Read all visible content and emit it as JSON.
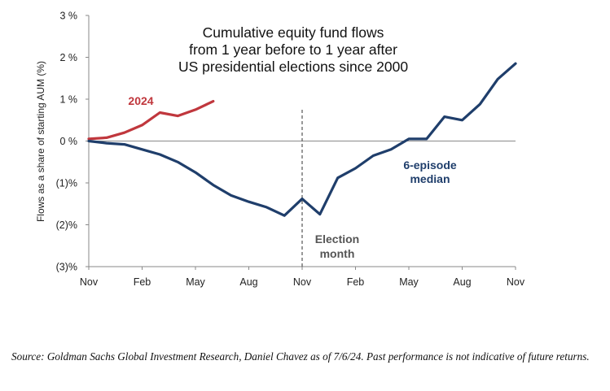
{
  "chart_data": {
    "type": "line",
    "title_lines": [
      "Cumulative equity fund flows",
      "from 1 year before to 1 year after",
      "US presidential elections since 2000"
    ],
    "ylabel": "Flows as a share of starting AUM (%)",
    "xlabel": "",
    "x_ticks": [
      "Nov",
      "Feb",
      "May",
      "Aug",
      "Nov",
      "Feb",
      "May",
      "Aug",
      "Nov"
    ],
    "x_range": [
      0,
      24
    ],
    "ylim": [
      -3,
      3
    ],
    "y_ticks": [
      {
        "value": 3,
        "label": "3 %"
      },
      {
        "value": 2,
        "label": "2 %"
      },
      {
        "value": 1,
        "label": "1 %"
      },
      {
        "value": 0,
        "label": "0 %"
      },
      {
        "value": -1,
        "label": "(1)%"
      },
      {
        "value": -2,
        "label": "(2)%"
      },
      {
        "value": -3,
        "label": "(3)%"
      }
    ],
    "zero_line": true,
    "grid": false,
    "series": [
      {
        "name": "2024",
        "color": "#c0373d",
        "x": [
          0,
          1,
          2,
          3,
          4,
          5,
          6,
          7
        ],
        "y": [
          0.05,
          0.08,
          0.2,
          0.38,
          0.68,
          0.6,
          0.75,
          0.95
        ]
      },
      {
        "name": "6-episode median",
        "color": "#1f3e6b",
        "x": [
          0,
          1,
          2,
          3,
          4,
          5,
          6,
          7,
          8,
          9,
          10,
          11,
          12,
          13,
          14,
          15,
          16,
          17,
          18,
          19,
          20,
          21,
          22,
          23,
          24
        ],
        "y": [
          0.0,
          -0.05,
          -0.08,
          -0.2,
          -0.32,
          -0.5,
          -0.75,
          -1.05,
          -1.3,
          -1.45,
          -1.58,
          -1.78,
          -1.38,
          -1.75,
          -0.88,
          -0.65,
          -0.35,
          -0.2,
          0.05,
          0.05,
          0.58,
          0.5,
          0.88,
          1.48,
          1.85
        ]
      }
    ],
    "annotations": [
      {
        "lines": [
          "2024"
        ],
        "color": "#c0373d"
      },
      {
        "lines": [
          "6-episode",
          "median"
        ],
        "color": "#1f3e6b"
      },
      {
        "lines": [
          "Election",
          "month"
        ],
        "color": "#555555"
      }
    ],
    "election_marker_x": 12
  },
  "source_text": "Source: Goldman Sachs Global Investment Research, Daniel Chavez  as of 7/6/24. Past performance is not indicative of future returns."
}
